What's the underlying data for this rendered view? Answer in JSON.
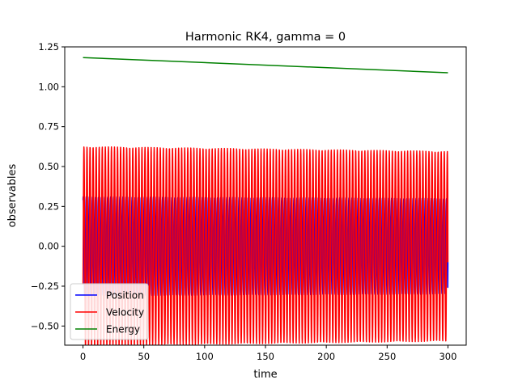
{
  "chart_data": {
    "type": "line",
    "title": "Harmonic RK4, gamma = 0",
    "xlabel": "time",
    "ylabel": "observables",
    "xlim": [
      -15,
      315
    ],
    "ylim": [
      -0.62,
      1.25
    ],
    "xticks": [
      0,
      50,
      100,
      150,
      200,
      250,
      300
    ],
    "xtick_labels": [
      "0",
      "50",
      "100",
      "150",
      "200",
      "250",
      "300"
    ],
    "yticks": [
      -0.5,
      -0.25,
      0.0,
      0.25,
      0.5,
      0.75,
      1.0,
      1.25
    ],
    "ytick_labels": [
      "−0.50",
      "−0.25",
      "0.00",
      "0.25",
      "0.50",
      "0.75",
      "1.00",
      "1.25"
    ],
    "grid": false,
    "legend_position": "lower-left",
    "series": [
      {
        "name": "Position",
        "color": "#0000ff",
        "kind": "oscillation",
        "x_start": 0,
        "x_end": 300,
        "amplitude_start": 0.31,
        "amplitude_end": 0.3,
        "period": 2.51,
        "value_at_start": 0.29,
        "value_at_end": -0.1
      },
      {
        "name": "Velocity",
        "color": "#ff0000",
        "kind": "oscillation",
        "x_start": 0,
        "x_end": 300,
        "amplitude_start": 0.625,
        "amplitude_end": 0.595,
        "period": 2.51,
        "value_at_start": -0.24,
        "value_at_end": -0.1
      },
      {
        "name": "Energy",
        "color": "#008000",
        "kind": "linear",
        "x": [
          0,
          300
        ],
        "values": [
          1.183,
          1.088
        ]
      }
    ]
  }
}
